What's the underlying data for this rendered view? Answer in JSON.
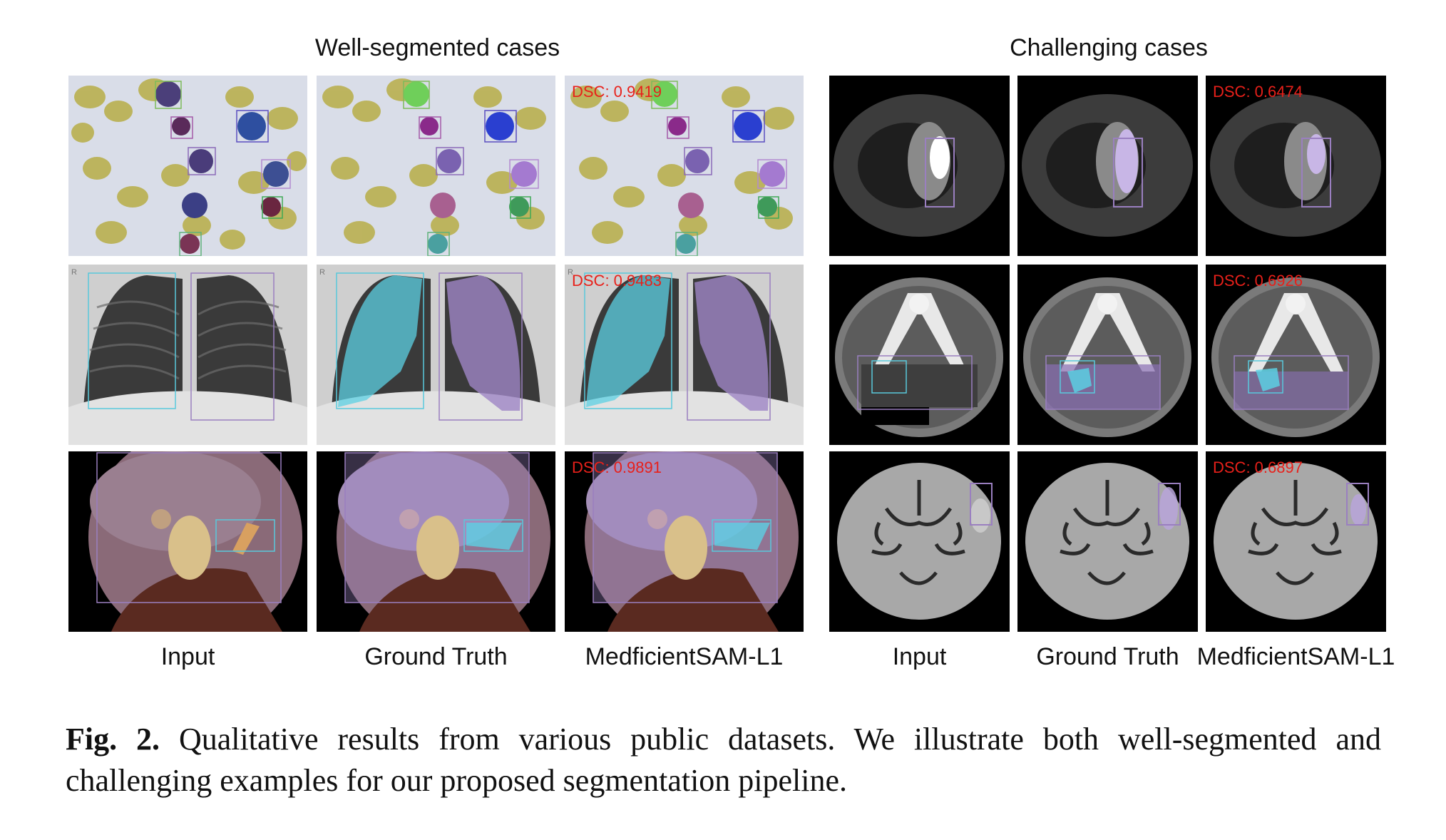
{
  "groups": {
    "left_title": "Well-segmented cases",
    "right_title": "Challenging cases"
  },
  "column_labels": {
    "left": [
      "Input",
      "Ground Truth",
      "MedficientSAM-L1"
    ],
    "right": [
      "Input",
      "Ground Truth",
      "MedficientSAM-L1"
    ]
  },
  "dsc": {
    "left": [
      "DSC: 0.9419",
      "DSC: 0.9483",
      "DSC: 0.9891"
    ],
    "right": [
      "DSC: 0.6474",
      "DSC: 0.6926",
      "DSC: 0.6897"
    ]
  },
  "caption": {
    "label": "Fig. 2.",
    "text": "Qualitative results from various public datasets. We illustrate both well-segmented and challenging examples for our proposed segmentation pipeline."
  },
  "colors": {
    "dsc_text": "#e8201a",
    "box_purple": "#9a7fc0",
    "box_cyan": "#59c9dc",
    "mask_purple": "#9f86c6",
    "mask_cyan": "#5cd0e3"
  }
}
